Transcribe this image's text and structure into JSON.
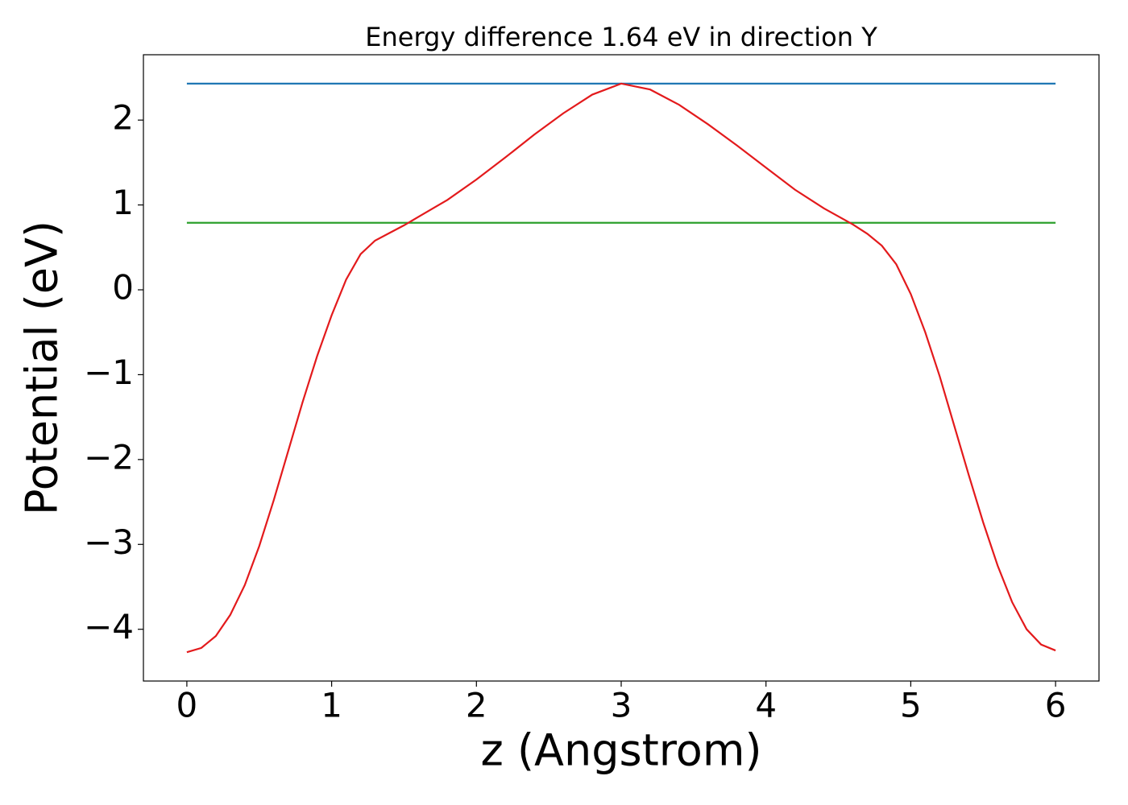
{
  "chart_data": {
    "type": "line",
    "title": "Energy difference 1.64 eV in direction Y",
    "x_label": "z (Angstrom)",
    "y_label": "Potential (eV)",
    "xlim": [
      -0.3,
      6.3
    ],
    "ylim": [
      -4.61,
      2.77
    ],
    "xticks": [
      0,
      1,
      2,
      3,
      4,
      5,
      6
    ],
    "yticks": [
      {
        "value": -4,
        "label": "−4"
      },
      {
        "value": -3,
        "label": "−3"
      },
      {
        "value": -2,
        "label": "−2"
      },
      {
        "value": -1,
        "label": "−1"
      },
      0,
      1,
      2
    ],
    "series": [
      {
        "color": "#1f77b4",
        "x": [
          0,
          6
        ],
        "values": [
          2.43,
          2.43
        ]
      },
      {
        "color": "#2ca02c",
        "x": [
          0,
          6
        ],
        "values": [
          0.79,
          0.79
        ]
      },
      {
        "color": "#e31a1c",
        "x": [
          0,
          0.1,
          0.2,
          0.3,
          0.4,
          0.5,
          0.6,
          0.7,
          0.8,
          0.9,
          1.0,
          1.1,
          1.2,
          1.3,
          1.4,
          1.5,
          1.6,
          1.8,
          2.0,
          2.2,
          2.4,
          2.6,
          2.8,
          3.0,
          3.2,
          3.4,
          3.6,
          3.8,
          4.0,
          4.2,
          4.4,
          4.6,
          4.7,
          4.8,
          4.9,
          5.0,
          5.1,
          5.2,
          5.3,
          5.4,
          5.5,
          5.6,
          5.7,
          5.8,
          5.9,
          6.0
        ],
        "values": [
          -4.27,
          -4.22,
          -4.08,
          -3.83,
          -3.48,
          -3.02,
          -2.48,
          -1.9,
          -1.32,
          -0.78,
          -0.3,
          0.12,
          0.42,
          0.58,
          0.67,
          0.76,
          0.86,
          1.06,
          1.3,
          1.56,
          1.83,
          2.08,
          2.3,
          2.43,
          2.36,
          2.18,
          1.95,
          1.7,
          1.44,
          1.18,
          0.96,
          0.77,
          0.66,
          0.52,
          0.3,
          -0.05,
          -0.5,
          -1.02,
          -1.6,
          -2.18,
          -2.74,
          -3.25,
          -3.68,
          -4.0,
          -4.18,
          -4.25
        ]
      }
    ]
  }
}
